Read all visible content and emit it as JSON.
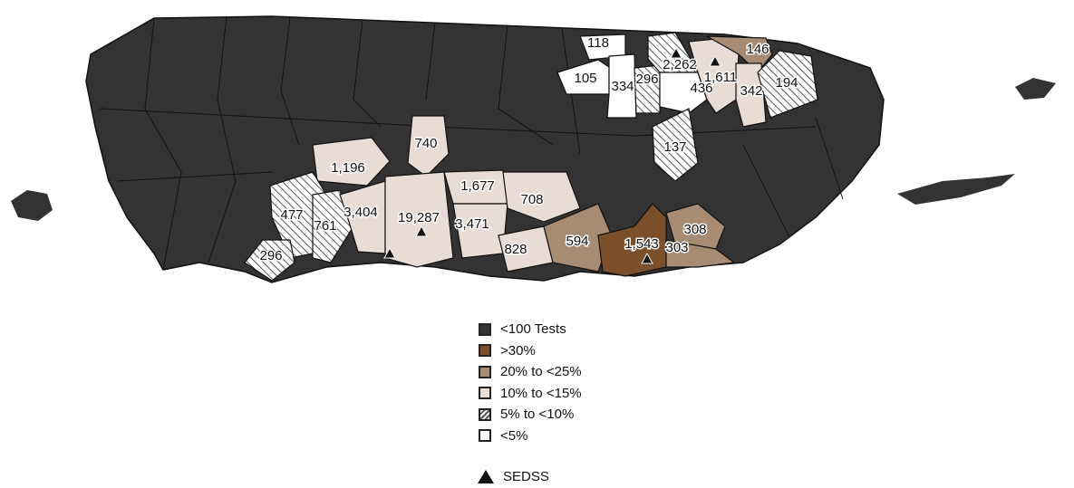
{
  "colors": {
    "lt100": "#333333",
    "gt30": "#7a4f2a",
    "p20_25": "#a88b73",
    "p10_15": "#e8ddd6",
    "p5_10": "hatch",
    "lt5": "#ffffff"
  },
  "legend": [
    {
      "key": "lt100",
      "label": "<100 Tests"
    },
    {
      "key": "gt30",
      "label": ">30%"
    },
    {
      "key": "p20_25",
      "label": "20% to <25%"
    },
    {
      "key": "p10_15",
      "label": "10% to <15%"
    },
    {
      "key": "p5_10",
      "label": "5% to <10%"
    },
    {
      "key": "lt5",
      "label": "<5%"
    }
  ],
  "sedss_label": "SEDSS",
  "municipalities": [
    {
      "tests": "118",
      "cat": "lt5",
      "sedss": false
    },
    {
      "tests": "105",
      "cat": "lt5",
      "sedss": false
    },
    {
      "tests": "334",
      "cat": "lt5",
      "sedss": false
    },
    {
      "tests": "296",
      "cat": "p5_10",
      "sedss": false
    },
    {
      "tests": "2,262",
      "cat": "p5_10",
      "sedss": true
    },
    {
      "tests": "436",
      "cat": "lt5",
      "sedss": false
    },
    {
      "tests": "1,611",
      "cat": "p10_15",
      "sedss": true
    },
    {
      "tests": "146",
      "cat": "p20_25",
      "sedss": false
    },
    {
      "tests": "342",
      "cat": "p10_15",
      "sedss": false
    },
    {
      "tests": "194",
      "cat": "p5_10",
      "sedss": false
    },
    {
      "tests": "137",
      "cat": "p5_10",
      "sedss": false
    },
    {
      "tests": "1,196",
      "cat": "p10_15",
      "sedss": false
    },
    {
      "tests": "740",
      "cat": "p10_15",
      "sedss": false
    },
    {
      "tests": "477",
      "cat": "p5_10",
      "sedss": false
    },
    {
      "tests": "761",
      "cat": "p5_10",
      "sedss": false
    },
    {
      "tests": "3,404",
      "cat": "p10_15",
      "sedss": true
    },
    {
      "tests": "19,287",
      "cat": "p10_15",
      "sedss": true
    },
    {
      "tests": "1,677",
      "cat": "p10_15",
      "sedss": false
    },
    {
      "tests": "3,471",
      "cat": "p10_15",
      "sedss": false
    },
    {
      "tests": "708",
      "cat": "p10_15",
      "sedss": false
    },
    {
      "tests": "828",
      "cat": "p10_15",
      "sedss": false
    },
    {
      "tests": "296",
      "cat": "p5_10",
      "sedss": false
    },
    {
      "tests": "594",
      "cat": "p20_25",
      "sedss": false
    },
    {
      "tests": "1,543",
      "cat": "gt30",
      "sedss": true
    },
    {
      "tests": "308",
      "cat": "p20_25",
      "sedss": false
    },
    {
      "tests": "303",
      "cat": "p20_25",
      "sedss": false
    }
  ]
}
